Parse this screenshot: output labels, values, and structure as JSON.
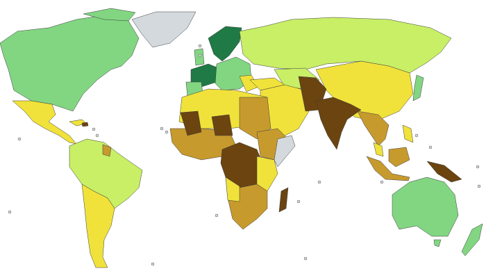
{
  "map": {
    "type": "choropleth-world",
    "palette": {
      "darkest_green": "#1f7a45",
      "green": "#82d682",
      "light_green": "#c8ef66",
      "yellow": "#f0e23a",
      "gold": "#c79a2e",
      "brown": "#6b4410",
      "no_data": "#d3d9dd",
      "ocean": "#ffffff"
    }
  }
}
